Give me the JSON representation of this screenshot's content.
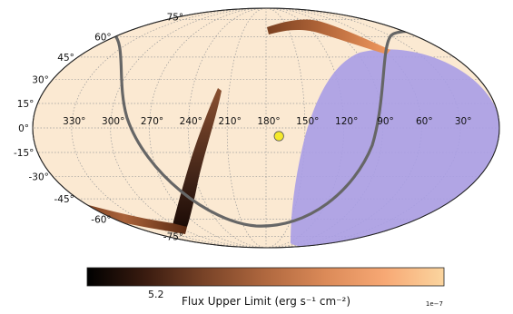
{
  "chart_data": {
    "type": "heatmap",
    "projection": "mollweide",
    "grid": true,
    "background_color": "#fbe9d2",
    "lat_ticks": [
      {
        "value": 75,
        "label": "75°"
      },
      {
        "value": 60,
        "label": "60°"
      },
      {
        "value": 45,
        "label": "45°"
      },
      {
        "value": 30,
        "label": "30°"
      },
      {
        "value": 15,
        "label": "15°"
      },
      {
        "value": 0,
        "label": "0°"
      },
      {
        "value": -15,
        "label": "-15°"
      },
      {
        "value": -30,
        "label": "-30°"
      },
      {
        "value": -45,
        "label": "-45°"
      },
      {
        "value": -60,
        "label": "-60°"
      },
      {
        "value": -75,
        "label": "-75°"
      }
    ],
    "lon_ticks": [
      {
        "value": 330,
        "label": "330°"
      },
      {
        "value": 300,
        "label": "300°"
      },
      {
        "value": 270,
        "label": "270°"
      },
      {
        "value": 240,
        "label": "240°"
      },
      {
        "value": 210,
        "label": "210°"
      },
      {
        "value": 180,
        "label": "180°"
      },
      {
        "value": 150,
        "label": "150°"
      },
      {
        "value": 120,
        "label": "120°"
      },
      {
        "value": 90,
        "label": "90°"
      },
      {
        "value": 60,
        "label": "60°"
      },
      {
        "value": 30,
        "label": "30°"
      }
    ],
    "colorbar": {
      "label": "Flux Upper Limit (erg s⁻¹ cm⁻²)",
      "tick_label": "5.2",
      "exponent_label": "1e−7",
      "colors": [
        "#000000",
        "#3b1c10",
        "#7a4428",
        "#b0683f",
        "#db8a58",
        "#f7a874",
        "#fbd59f"
      ]
    },
    "marker": {
      "lon": 170,
      "lat": -5,
      "color": "#f5e92c"
    },
    "galactic_plane_color": "#666666",
    "region_color": "#a99de6"
  }
}
